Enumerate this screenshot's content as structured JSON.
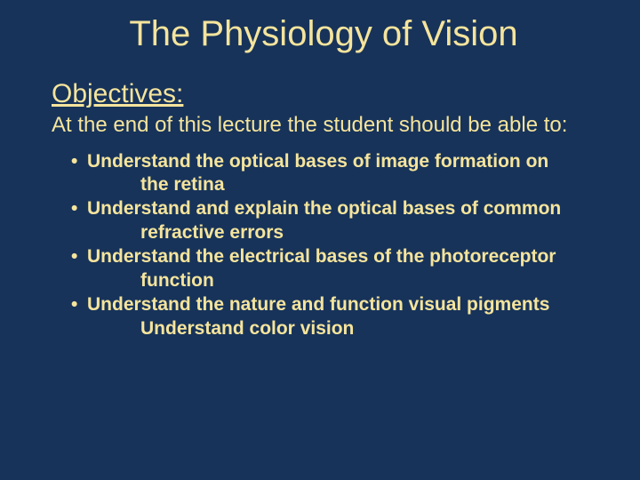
{
  "colors": {
    "background": "#17335a",
    "text": "#f5e49c"
  },
  "typography": {
    "font_family": "Comic Sans MS",
    "title_fontsize": 40,
    "heading_fontsize": 30,
    "leadin_fontsize": 24,
    "bullet_fontsize": 21,
    "bullet_fontweight": "bold"
  },
  "slide": {
    "title": "The Physiology of Vision",
    "objectives_heading": "Objectives:",
    "lead_in": "At the end of this lecture the student should be able to:",
    "bullets": [
      {
        "line1": "Understand the optical bases of image formation on",
        "line2": "the retina"
      },
      {
        "line1": "Understand and explain the optical bases of common",
        "line2": "refractive errors"
      },
      {
        "line1": "Understand the electrical bases of the photoreceptor",
        "line2": "function"
      },
      {
        "line1": "Understand the nature and function visual pigments",
        "line2": "Understand color vision"
      }
    ]
  }
}
